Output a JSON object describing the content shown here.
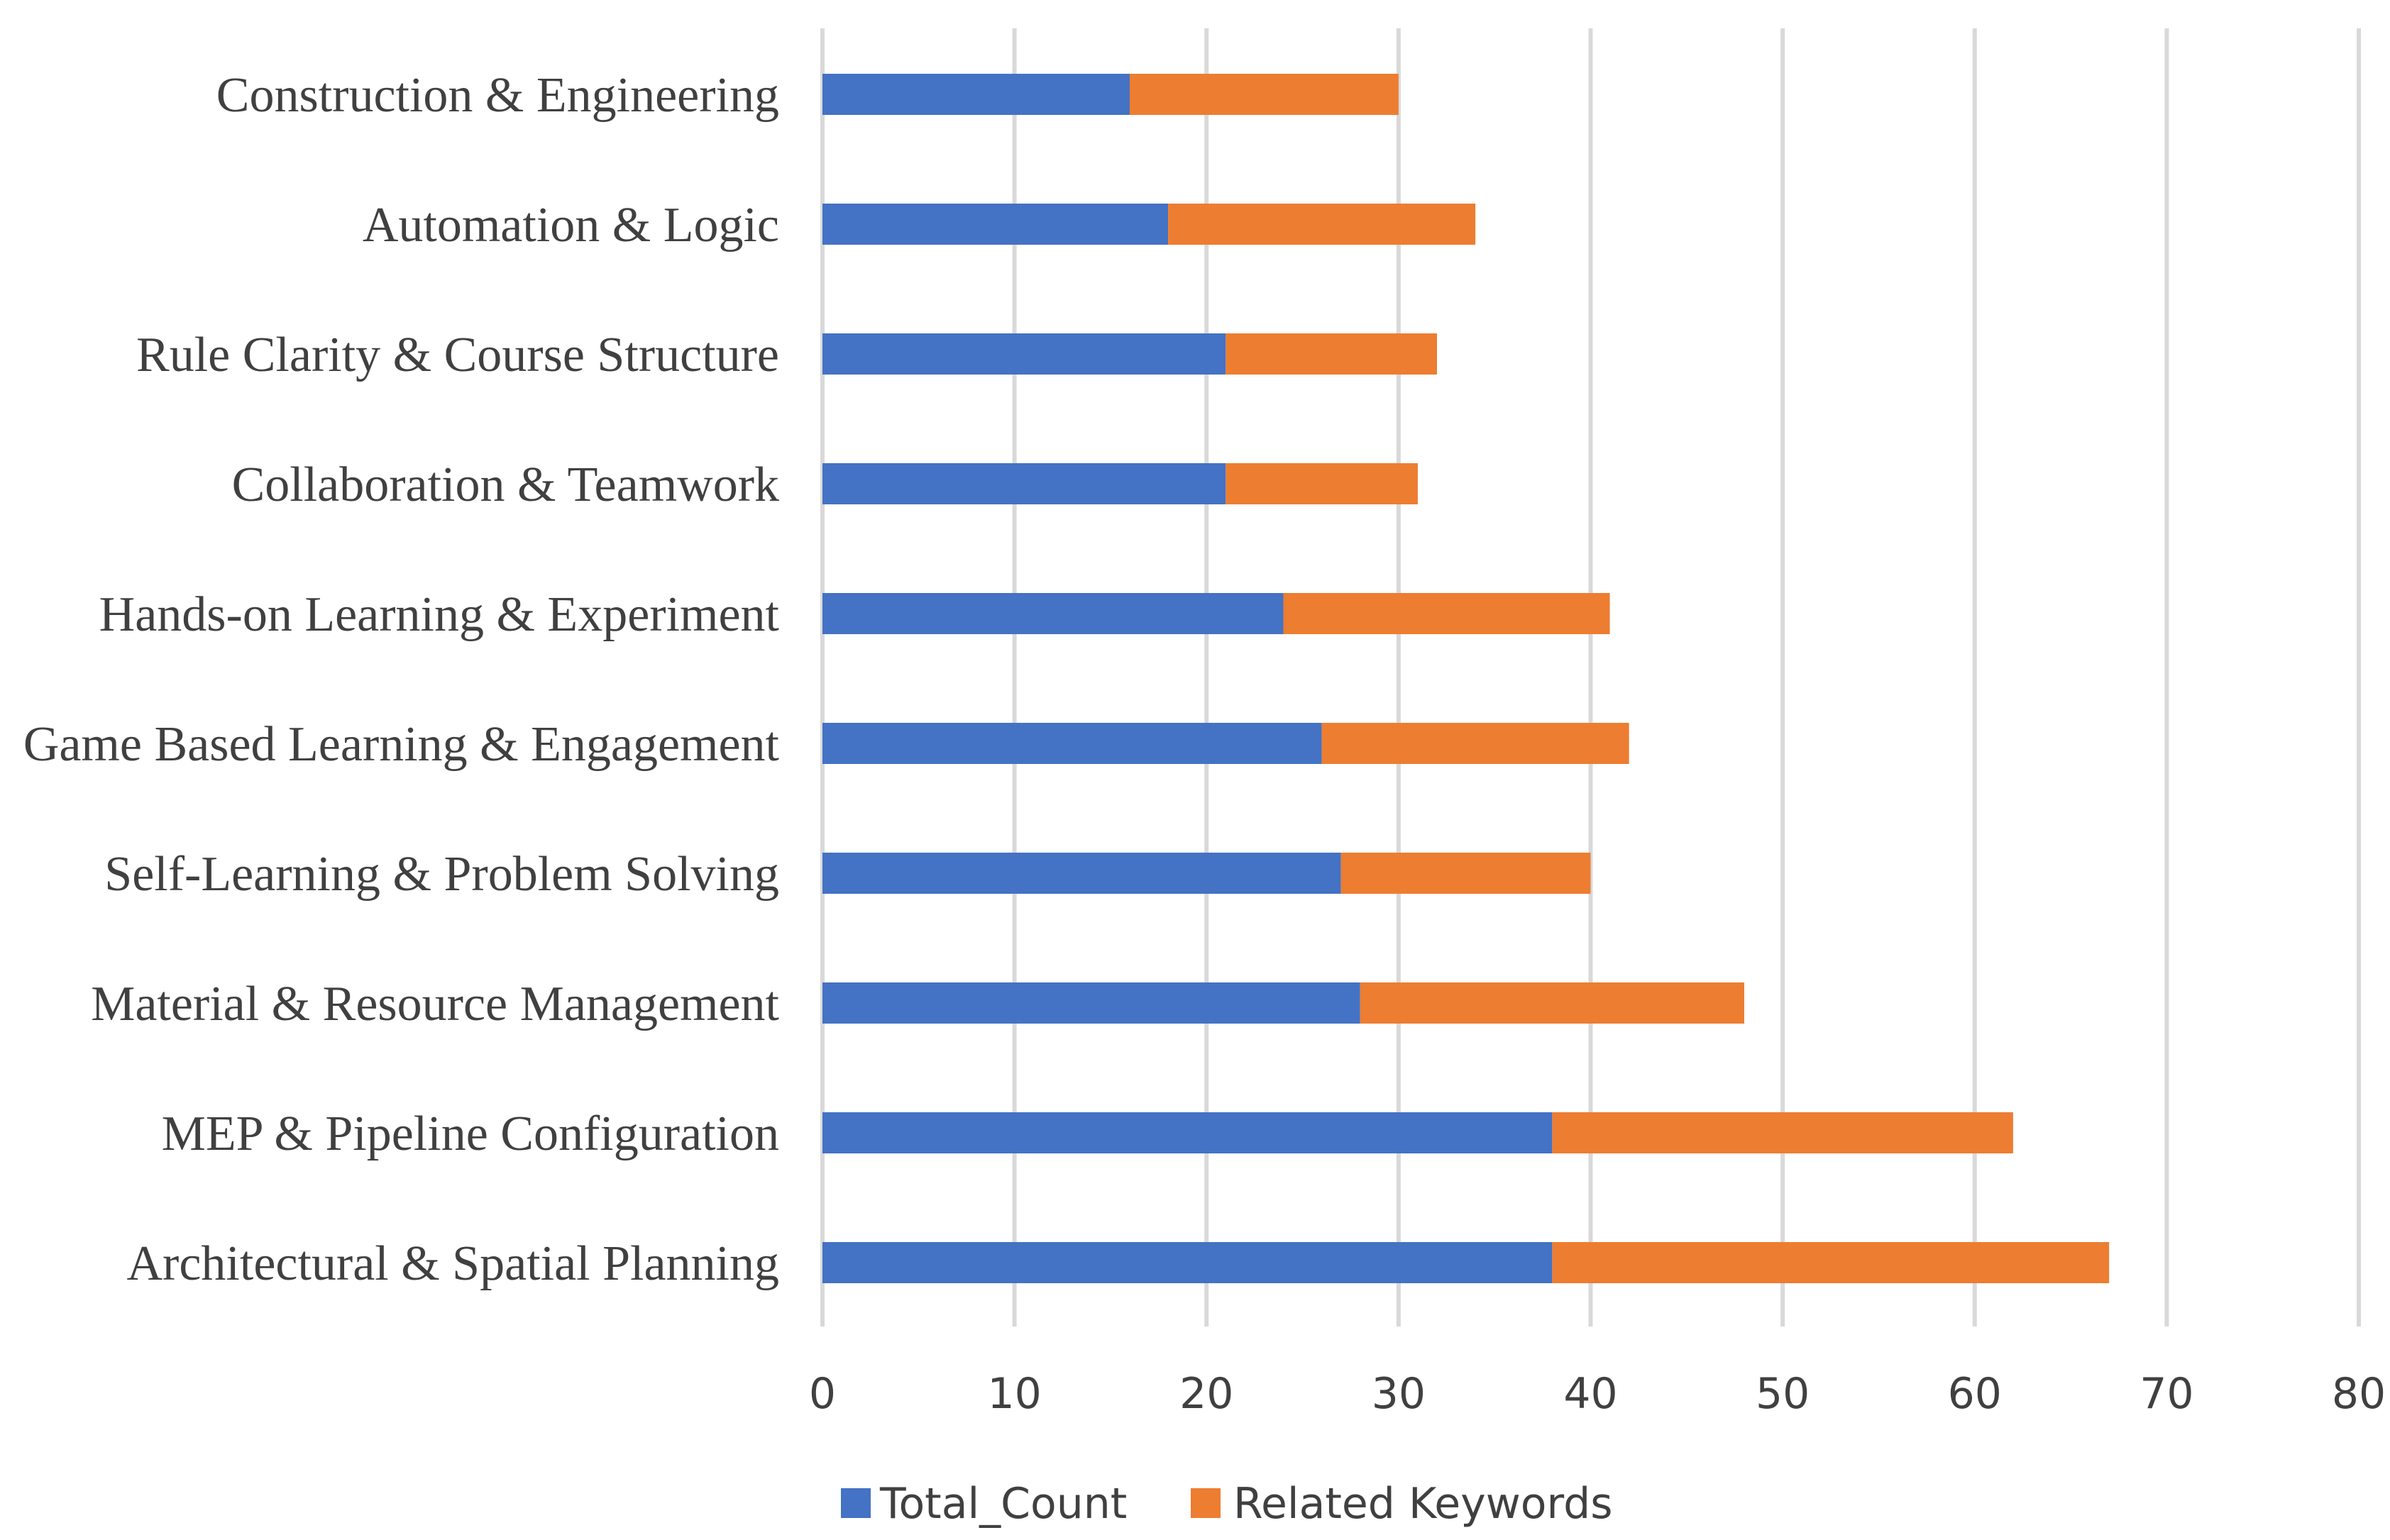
{
  "chart_data": {
    "type": "bar",
    "orientation": "horizontal",
    "stacked": true,
    "title": "",
    "xlabel": "",
    "ylabel": "",
    "categories": [
      "Architectural & Spatial Planning",
      "MEP & Pipeline Configuration",
      "Material & Resource Management",
      "Self-Learning & Problem Solving",
      "Game Based Learning & Engagement",
      "Hands-on Learning & Experiment",
      "Collaboration & Teamwork",
      "Rule Clarity & Course Structure",
      "Automation & Logic",
      "Construction & Engineering"
    ],
    "series": [
      {
        "name": "Total_Count",
        "color": "#4472c4",
        "values": [
          38,
          38,
          28,
          27,
          26,
          24,
          21,
          21,
          18,
          16
        ]
      },
      {
        "name": "Related Keywords",
        "color": "#ed7d31",
        "values": [
          29,
          24,
          20,
          13,
          16,
          17,
          10,
          11,
          16,
          14
        ]
      }
    ],
    "xlim": [
      0,
      80
    ],
    "x_ticks": [
      "0",
      "10",
      "20",
      "30",
      "40",
      "50",
      "60",
      "70",
      "80"
    ],
    "grid": true,
    "legend_position": "bottom"
  }
}
